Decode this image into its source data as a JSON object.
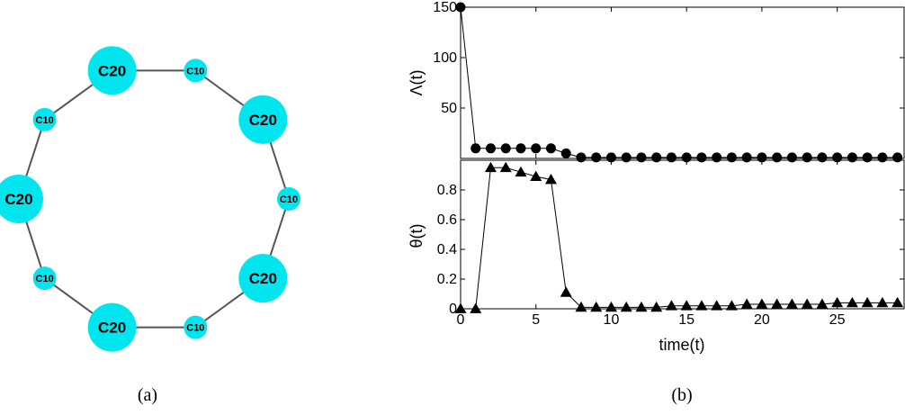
{
  "captions": {
    "left": "(a)",
    "right": "(b)"
  },
  "colors": {
    "node_fill": "#00e5ee",
    "edge": "#555555",
    "marker": "#000000"
  },
  "network": {
    "nodes": [
      {
        "label": "C20"
      },
      {
        "label": "C10"
      },
      {
        "label": "C20"
      },
      {
        "label": "C10"
      },
      {
        "label": "C20"
      },
      {
        "label": "C10"
      },
      {
        "label": "C20"
      },
      {
        "label": "C10"
      },
      {
        "label": "C20"
      },
      {
        "label": "C10"
      }
    ],
    "edges": [
      [
        0,
        1
      ],
      [
        1,
        2
      ],
      [
        2,
        3
      ],
      [
        3,
        4
      ],
      [
        4,
        5
      ],
      [
        5,
        6
      ],
      [
        6,
        7
      ],
      [
        7,
        8
      ],
      [
        8,
        9
      ],
      [
        9,
        0
      ]
    ]
  },
  "chart_data": [
    {
      "type": "line",
      "ylabel": "Λ(t)",
      "xlabel": "",
      "xlim": [
        0,
        29.5
      ],
      "ylim": [
        0,
        150
      ],
      "yticks": [
        50,
        100,
        150
      ],
      "marker": "circle",
      "x": [
        0,
        1,
        2,
        3,
        4,
        5,
        6,
        7,
        8,
        9,
        10,
        11,
        12,
        13,
        14,
        15,
        16,
        17,
        18,
        19,
        20,
        21,
        22,
        23,
        24,
        25,
        26,
        27,
        28,
        29
      ],
      "y": [
        150,
        10,
        10,
        10,
        10,
        10,
        10,
        5,
        1,
        1,
        1,
        1,
        1,
        1,
        1,
        1,
        1,
        1,
        1,
        1,
        1,
        1,
        1,
        1,
        1,
        1,
        1,
        1,
        1,
        1
      ]
    },
    {
      "type": "line",
      "ylabel": "θ(t)",
      "xlabel": "time(t)",
      "xlim": [
        0,
        29.5
      ],
      "ylim": [
        0,
        1.0
      ],
      "yticks": [
        0,
        0.2,
        0.4,
        0.6,
        0.8
      ],
      "xticks": [
        0,
        5,
        10,
        15,
        20,
        25
      ],
      "marker": "triangle",
      "x": [
        0,
        1,
        2,
        3,
        4,
        5,
        6,
        7,
        8,
        9,
        10,
        11,
        12,
        13,
        14,
        15,
        16,
        17,
        18,
        19,
        20,
        21,
        22,
        23,
        24,
        25,
        26,
        27,
        28,
        29
      ],
      "y": [
        0,
        0,
        0.95,
        0.95,
        0.92,
        0.89,
        0.87,
        0.11,
        0.01,
        0.01,
        0.01,
        0.01,
        0.01,
        0.01,
        0.02,
        0.02,
        0.02,
        0.02,
        0.02,
        0.03,
        0.03,
        0.03,
        0.03,
        0.03,
        0.03,
        0.04,
        0.04,
        0.04,
        0.04,
        0.04
      ]
    }
  ]
}
